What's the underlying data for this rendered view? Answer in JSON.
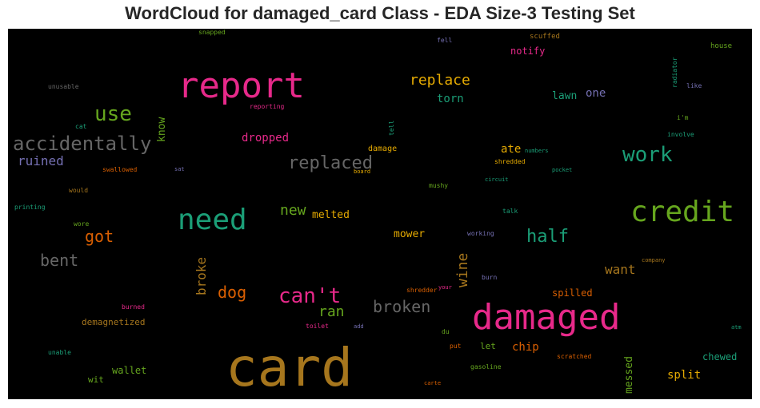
{
  "title": "WordCloud for damaged_card Class - EDA Size-3 Testing Set",
  "chart_data": {
    "type": "wordcloud",
    "title": "WordCloud for damaged_card Class - EDA Size-3 Testing Set",
    "background": "#000000",
    "words": [
      {
        "text": "card",
        "color": "#a6761d",
        "rot": 0
      },
      {
        "text": "report",
        "color": "#e7298a",
        "rot": 0
      },
      {
        "text": "damaged",
        "color": "#e7298a",
        "rot": 0
      },
      {
        "text": "credit",
        "color": "#66a61e",
        "rot": 0
      },
      {
        "text": "need",
        "color": "#1b9e77",
        "rot": 0
      },
      {
        "text": "accidentally",
        "color": "#666666",
        "rot": 0
      },
      {
        "text": "can't",
        "color": "#e7298a",
        "rot": 0
      },
      {
        "text": "work",
        "color": "#1b9e77",
        "rot": 0
      },
      {
        "text": "use",
        "color": "#66a61e",
        "rot": 0
      },
      {
        "text": "replaced",
        "color": "#666666",
        "rot": 0
      },
      {
        "text": "half",
        "color": "#1b9e77",
        "rot": 0
      },
      {
        "text": "broken",
        "color": "#666666",
        "rot": 0
      },
      {
        "text": "replace",
        "color": "#e6ab02",
        "rot": 0
      },
      {
        "text": "bent",
        "color": "#666666",
        "rot": 0
      },
      {
        "text": "got",
        "color": "#d95f02",
        "rot": 0
      },
      {
        "text": "dog",
        "color": "#d95f02",
        "rot": 0
      },
      {
        "text": "new",
        "color": "#66a61e",
        "rot": 0
      },
      {
        "text": "ran",
        "color": "#66a61e",
        "rot": 0
      },
      {
        "text": "wine",
        "color": "#a6761d",
        "rot": 90
      },
      {
        "text": "ruined",
        "color": "#7570b3",
        "rot": 0
      },
      {
        "text": "want",
        "color": "#a6761d",
        "rot": 0
      },
      {
        "text": "broke",
        "color": "#a6761d",
        "rot": 90
      },
      {
        "text": "torn",
        "color": "#1b9e77",
        "rot": 0
      },
      {
        "text": "dropped",
        "color": "#e7298a",
        "rot": 0
      },
      {
        "text": "melted",
        "color": "#e6ab02",
        "rot": 0
      },
      {
        "text": "mower",
        "color": "#e6ab02",
        "rot": 0
      },
      {
        "text": "lawn",
        "color": "#1b9e77",
        "rot": 0
      },
      {
        "text": "one",
        "color": "#7570b3",
        "rot": 0
      },
      {
        "text": "ate",
        "color": "#e6ab02",
        "rot": 0
      },
      {
        "text": "know",
        "color": "#66a61e",
        "rot": 90
      },
      {
        "text": "messed",
        "color": "#66a61e",
        "rot": 90
      },
      {
        "text": "split",
        "color": "#e6ab02",
        "rot": 0
      },
      {
        "text": "chip",
        "color": "#d95f02",
        "rot": 0
      },
      {
        "text": "notify",
        "color": "#e7298a",
        "rot": 0
      },
      {
        "text": "spilled",
        "color": "#d95f02",
        "rot": 0
      },
      {
        "text": "chewed",
        "color": "#1b9e77",
        "rot": 0
      },
      {
        "text": "wallet",
        "color": "#66a61e",
        "rot": 0
      },
      {
        "text": "demagnetized",
        "color": "#a6761d",
        "rot": 0
      },
      {
        "text": "damage",
        "color": "#e6ab02",
        "rot": 0
      },
      {
        "text": "wit",
        "color": "#66a61e",
        "rot": 0
      },
      {
        "text": "let",
        "color": "#66a61e",
        "rot": 0
      },
      {
        "text": "scuffed",
        "color": "#a6761d",
        "rot": 0
      },
      {
        "text": "house",
        "color": "#66a61e",
        "rot": 0
      },
      {
        "text": "fell",
        "color": "#7570b3",
        "rot": 0
      },
      {
        "text": "snapped",
        "color": "#66a61e",
        "rot": 0
      },
      {
        "text": "unusable",
        "color": "#666666",
        "rot": 0
      },
      {
        "text": "reporting",
        "color": "#e7298a",
        "rot": 0
      },
      {
        "text": "radiator",
        "color": "#1b9e77",
        "rot": 90
      },
      {
        "text": "like",
        "color": "#7570b3",
        "rot": 0
      },
      {
        "text": "i'm",
        "color": "#66a61e",
        "rot": 0
      },
      {
        "text": "involve",
        "color": "#1b9e77",
        "rot": 0
      },
      {
        "text": "tell",
        "color": "#1b9e77",
        "rot": 90
      },
      {
        "text": "cat",
        "color": "#1b9e77",
        "rot": 0
      },
      {
        "text": "numbers",
        "color": "#1b9e77",
        "rot": 0
      },
      {
        "text": "shredded",
        "color": "#e6ab02",
        "rot": 0
      },
      {
        "text": "pocket",
        "color": "#1b9e77",
        "rot": 0
      },
      {
        "text": "board",
        "color": "#e6ab02",
        "rot": 0
      },
      {
        "text": "swallowed",
        "color": "#d95f02",
        "rot": 0
      },
      {
        "text": "sat",
        "color": "#7570b3",
        "rot": 0
      },
      {
        "text": "circuit",
        "color": "#1b9e77",
        "rot": 0
      },
      {
        "text": "would",
        "color": "#a6761d",
        "rot": 0
      },
      {
        "text": "mushy",
        "color": "#66a61e",
        "rot": 0
      },
      {
        "text": "printing",
        "color": "#1b9e77",
        "rot": 0
      },
      {
        "text": "talk",
        "color": "#1b9e77",
        "rot": 0
      },
      {
        "text": "wore",
        "color": "#66a61e",
        "rot": 0
      },
      {
        "text": "working",
        "color": "#7570b3",
        "rot": 0
      },
      {
        "text": "company",
        "color": "#a6761d",
        "rot": 0
      },
      {
        "text": "burn",
        "color": "#7570b3",
        "rot": 0
      },
      {
        "text": "shredder",
        "color": "#d95f02",
        "rot": 0
      },
      {
        "text": "your",
        "color": "#e7298a",
        "rot": 0
      },
      {
        "text": "burned",
        "color": "#e7298a",
        "rot": 0
      },
      {
        "text": "toilet",
        "color": "#e7298a",
        "rot": 0
      },
      {
        "text": "add",
        "color": "#7570b3",
        "rot": 0
      },
      {
        "text": "du",
        "color": "#66a61e",
        "rot": 0
      },
      {
        "text": "atm",
        "color": "#1b9e77",
        "rot": 0
      },
      {
        "text": "put",
        "color": "#d95f02",
        "rot": 0
      },
      {
        "text": "scratched",
        "color": "#d95f02",
        "rot": 0
      },
      {
        "text": "unable",
        "color": "#1b9e77",
        "rot": 0
      },
      {
        "text": "gasoline",
        "color": "#66a61e",
        "rot": 0
      },
      {
        "text": "carte",
        "color": "#d95f02",
        "rot": 0
      }
    ]
  }
}
